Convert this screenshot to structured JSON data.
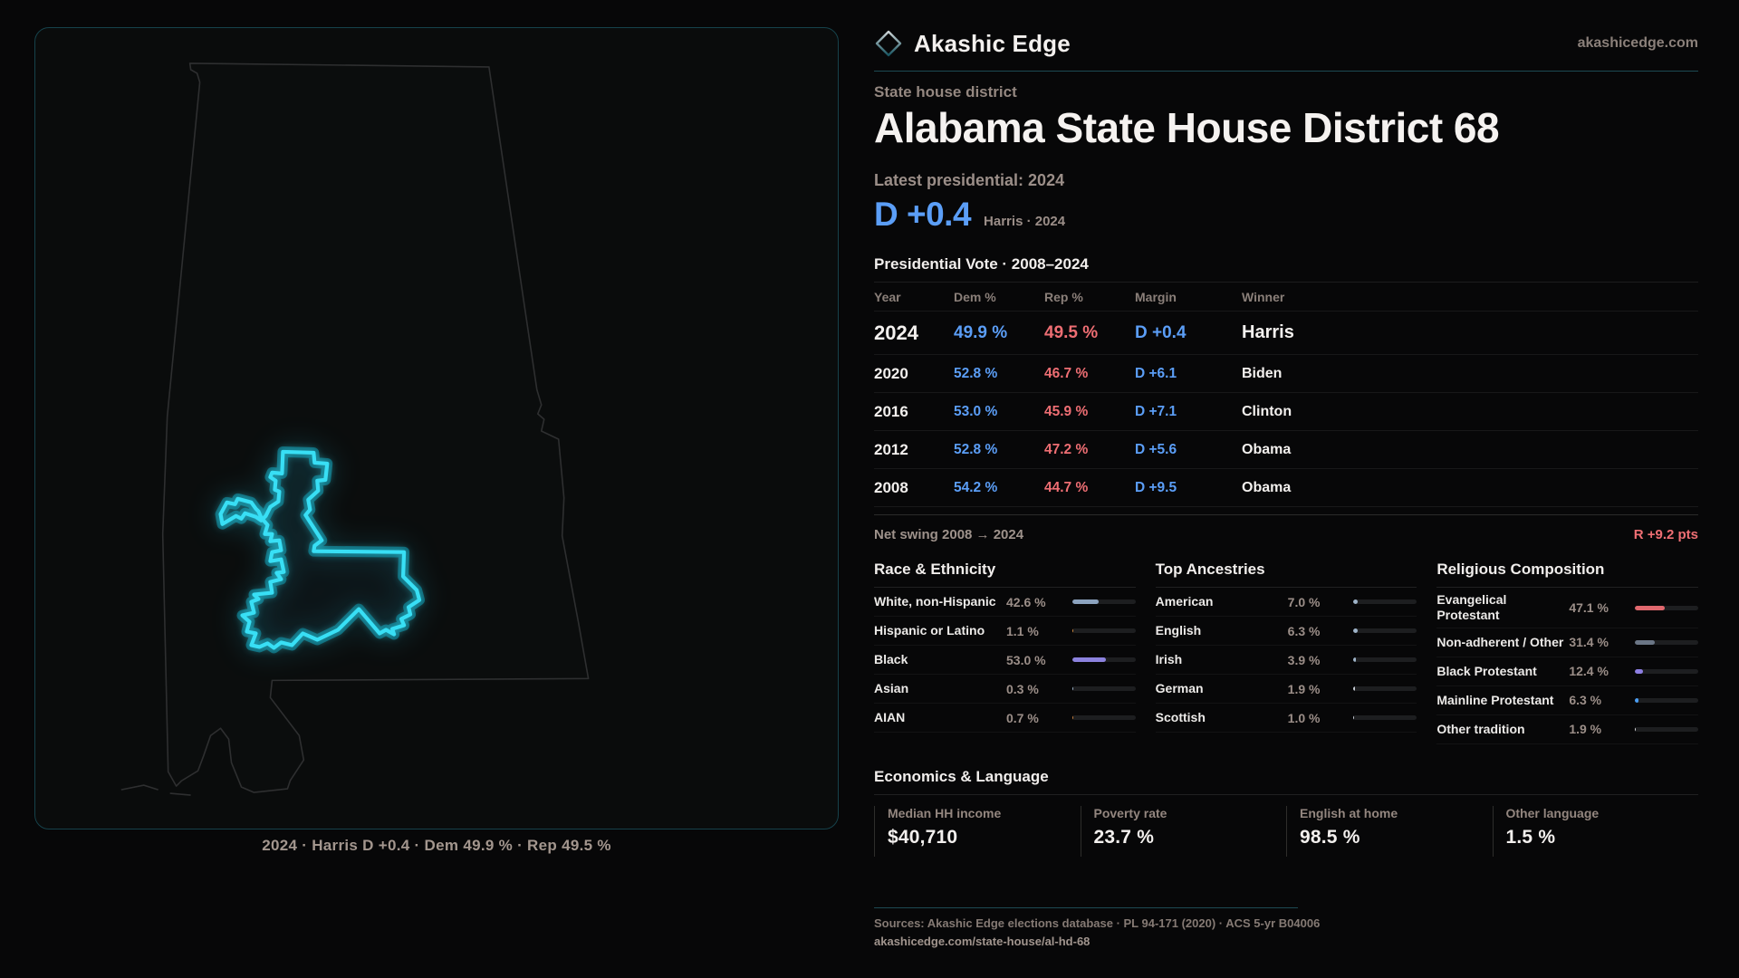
{
  "brand": {
    "name": "Akashic Edge",
    "domain": "akashicedge.com"
  },
  "page": {
    "kicker": "State house district",
    "title": "Alabama State House District 68"
  },
  "latest": {
    "label": "Latest presidential: 2024",
    "value": "D +0.4",
    "detail": "Harris · 2024"
  },
  "vote_table": {
    "title": "Presidential Vote · 2008–2024",
    "columns": {
      "year": "Year",
      "dem": "Dem %",
      "rep": "Rep %",
      "margin": "Margin",
      "winner": "Winner"
    },
    "rows": [
      {
        "year": "2024",
        "dem": "49.9 %",
        "rep": "49.5 %",
        "margin": "D +0.4",
        "winner": "Harris"
      },
      {
        "year": "2020",
        "dem": "52.8 %",
        "rep": "46.7 %",
        "margin": "D +6.1",
        "winner": "Biden"
      },
      {
        "year": "2016",
        "dem": "53.0 %",
        "rep": "45.9 %",
        "margin": "D +7.1",
        "winner": "Clinton"
      },
      {
        "year": "2012",
        "dem": "52.8 %",
        "rep": "47.2 %",
        "margin": "D +5.6",
        "winner": "Obama"
      },
      {
        "year": "2008",
        "dem": "54.2 %",
        "rep": "44.7 %",
        "margin": "D +9.5",
        "winner": "Obama"
      }
    ]
  },
  "net_swing": {
    "label": "Net swing 2008 → 2024",
    "value": "R +9.2 pts"
  },
  "race": {
    "title": "Race & Ethnicity",
    "rows": [
      {
        "label": "White, non-Hispanic",
        "value": "42.6 %",
        "pct": 42.6,
        "color": "#8ca3bf"
      },
      {
        "label": "Hispanic or Latino",
        "value": "1.1 %",
        "pct": 1.1,
        "color": "#d08a3e"
      },
      {
        "label": "Black",
        "value": "53.0 %",
        "pct": 53.0,
        "color": "#8c82de"
      },
      {
        "label": "Asian",
        "value": "0.3 %",
        "pct": 0.3,
        "color": "#9fb4c9"
      },
      {
        "label": "AIAN",
        "value": "0.7 %",
        "pct": 0.7,
        "color": "#c8803c"
      }
    ]
  },
  "ancestries": {
    "title": "Top Ancestries",
    "rows": [
      {
        "label": "American",
        "value": "7.0 %",
        "pct": 7.0,
        "color": "#9fb4c9"
      },
      {
        "label": "English",
        "value": "6.3 %",
        "pct": 6.3,
        "color": "#9fb4c9"
      },
      {
        "label": "Irish",
        "value": "3.9 %",
        "pct": 3.9,
        "color": "#9fb4c9"
      },
      {
        "label": "German",
        "value": "1.9 %",
        "pct": 1.9,
        "color": "#c9ced6"
      },
      {
        "label": "Scottish",
        "value": "1.0 %",
        "pct": 1.0,
        "color": "#c9ced6"
      }
    ]
  },
  "religion": {
    "title": "Religious Composition",
    "rows": [
      {
        "label": "Evangelical Protestant",
        "value": "47.1 %",
        "pct": 47.1,
        "color": "#e0686e"
      },
      {
        "label": "Non-adherent / Other",
        "value": "31.4 %",
        "pct": 31.4,
        "color": "#6b7686"
      },
      {
        "label": "Black Protestant",
        "value": "12.4 %",
        "pct": 12.4,
        "color": "#8d7ee2"
      },
      {
        "label": "Mainline Protestant",
        "value": "6.3 %",
        "pct": 6.3,
        "color": "#4a9df2"
      },
      {
        "label": "Other tradition",
        "value": "1.9 %",
        "pct": 1.9,
        "color": "#d9dadc"
      }
    ]
  },
  "economics": {
    "title": "Economics & Language",
    "stats": [
      {
        "label": "Median HH income",
        "value": "$40,710"
      },
      {
        "label": "Poverty rate",
        "value": "23.7 %"
      },
      {
        "label": "English at home",
        "value": "98.5 %"
      },
      {
        "label": "Other language",
        "value": "1.5 %"
      }
    ]
  },
  "map": {
    "caption": "2024 · Harris D +0.4 · Dem 49.9 % · Rep 49.5 %"
  },
  "footer": {
    "sources": "Sources: Akashic Edge elections database · PL 94-171 (2020) · ACS 5-yr B04006",
    "permalink": "akashicedge.com/state-house/al-hd-68"
  },
  "colors": {
    "dem_blue": "#5b9ef7",
    "rep_red": "#ee6e73",
    "swing_red": "#ef6f74",
    "district_cyan": "#38dff5",
    "teal_rule": "#1d4a53",
    "muted_text": "#9b8e88"
  },
  "chart_data": [
    {
      "type": "table",
      "title": "Presidential Vote · 2008–2024",
      "columns": [
        "Year",
        "Dem %",
        "Rep %",
        "Margin",
        "Winner"
      ],
      "rows": [
        [
          2024,
          49.9,
          49.5,
          "D +0.4",
          "Harris"
        ],
        [
          2020,
          52.8,
          46.7,
          "D +6.1",
          "Biden"
        ],
        [
          2016,
          53.0,
          45.9,
          "D +7.1",
          "Clinton"
        ],
        [
          2012,
          52.8,
          47.2,
          "D +5.6",
          "Obama"
        ],
        [
          2008,
          54.2,
          44.7,
          "D +9.5",
          "Obama"
        ]
      ],
      "annotations": [
        "Latest presidential: 2024 → D +0.4 (Harris)",
        "Net swing 2008 → 2024: R +9.2 pts"
      ]
    },
    {
      "type": "bar",
      "title": "Race & Ethnicity",
      "orientation": "horizontal",
      "unit": "%",
      "xlim": [
        0,
        100
      ],
      "categories": [
        "White, non-Hispanic",
        "Hispanic or Latino",
        "Black",
        "Asian",
        "AIAN"
      ],
      "values": [
        42.6,
        1.1,
        53.0,
        0.3,
        0.7
      ]
    },
    {
      "type": "bar",
      "title": "Top Ancestries",
      "orientation": "horizontal",
      "unit": "%",
      "xlim": [
        0,
        100
      ],
      "categories": [
        "American",
        "English",
        "Irish",
        "German",
        "Scottish"
      ],
      "values": [
        7.0,
        6.3,
        3.9,
        1.9,
        1.0
      ]
    },
    {
      "type": "bar",
      "title": "Religious Composition",
      "orientation": "horizontal",
      "unit": "%",
      "xlim": [
        0,
        100
      ],
      "categories": [
        "Evangelical Protestant",
        "Non-adherent / Other",
        "Black Protestant",
        "Mainline Protestant",
        "Other tradition"
      ],
      "values": [
        47.1,
        31.4,
        12.4,
        6.3,
        1.9
      ]
    },
    {
      "type": "table",
      "title": "Economics & Language",
      "columns": [
        "Median HH income",
        "Poverty rate",
        "English at home",
        "Other language"
      ],
      "rows": [
        [
          "$40,710",
          "23.7 %",
          "98.5 %",
          "1.5 %"
        ]
      ]
    }
  ]
}
